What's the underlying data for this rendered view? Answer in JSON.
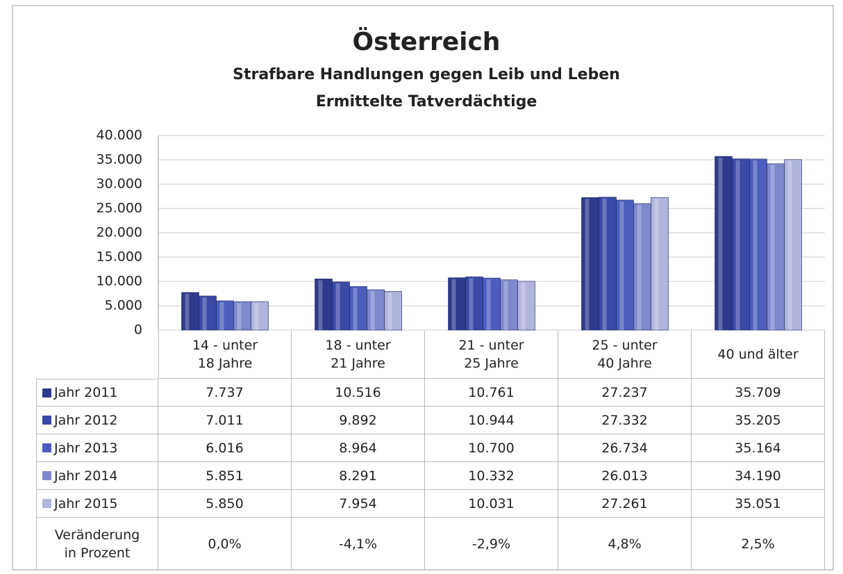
{
  "chart_data": {
    "type": "bar",
    "title": "Österreich",
    "subtitle": "Strafbare Handlungen gegen Leib und Leben",
    "subtitle2": "Ermittelte Tatverdächtige",
    "categories": [
      "14 - unter\n18 Jahre",
      "18 - unter\n21 Jahre",
      "21 - unter\n25 Jahre",
      "25 - unter\n40 Jahre",
      "40 und älter"
    ],
    "series": [
      {
        "name": "Jahr 2011",
        "color": "#2e3a8c",
        "values": [
          7737,
          10516,
          10761,
          27237,
          35709
        ],
        "value_labels": [
          "7.737",
          "10.516",
          "10.761",
          "27.237",
          "35.709"
        ]
      },
      {
        "name": "Jahr 2012",
        "color": "#3a4aa6",
        "values": [
          7011,
          9892,
          10944,
          27332,
          35205
        ],
        "value_labels": [
          "7.011",
          "9.892",
          "10.944",
          "27.332",
          "35.205"
        ]
      },
      {
        "name": "Jahr 2013",
        "color": "#4c5ebc",
        "values": [
          6016,
          8964,
          10700,
          26734,
          35164
        ],
        "value_labels": [
          "6.016",
          "8.964",
          "10.700",
          "26.734",
          "35.164"
        ]
      },
      {
        "name": "Jahr 2014",
        "color": "#7e88cc",
        "values": [
          5851,
          8291,
          10332,
          26013,
          34190
        ],
        "value_labels": [
          "5.851",
          "8.291",
          "10.332",
          "26.013",
          "34.190"
        ]
      },
      {
        "name": "Jahr 2015",
        "color": "#b0b5dd",
        "values": [
          5850,
          7954,
          10031,
          27261,
          35051
        ],
        "value_labels": [
          "5.850",
          "7.954",
          "10.031",
          "27.261",
          "35.051"
        ]
      }
    ],
    "change": {
      "label": "Veränderung\nin Prozent",
      "values": [
        0.0,
        -4.1,
        -2.9,
        4.8,
        2.5
      ],
      "value_labels": [
        "0,0%",
        "-4,1%",
        "-2,9%",
        "4,8%",
        "2,5%"
      ]
    },
    "ylim": [
      0,
      40000
    ],
    "yticks": [
      0,
      {
        "value": 5000,
        "label": "5.000"
      },
      {
        "value": 10000,
        "label": "10.000"
      },
      {
        "value": 15000,
        "label": "15.000"
      },
      {
        "value": 20000,
        "label": "20.000"
      },
      {
        "value": 25000,
        "label": "25.000"
      },
      {
        "value": 30000,
        "label": "30.000"
      },
      {
        "value": 35000,
        "label": "35.000"
      },
      {
        "value": 40000,
        "label": "40.000"
      }
    ],
    "grid": true
  }
}
